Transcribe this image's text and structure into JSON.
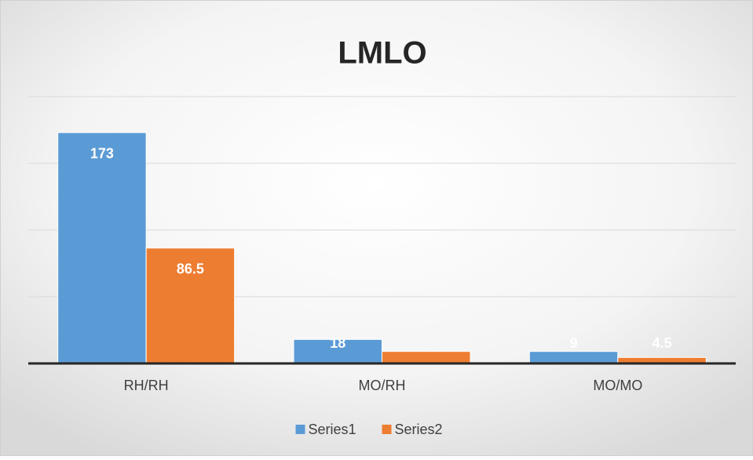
{
  "chart_data": {
    "type": "bar",
    "title": "LMLO",
    "categories": [
      "RH/RH",
      "MO/RH",
      "MO/MO"
    ],
    "series": [
      {
        "name": "Series1",
        "color": "#5b9bd5",
        "values": [
          173,
          18,
          9
        ],
        "value_labels": [
          "173",
          "18",
          "9"
        ]
      },
      {
        "name": "Series2",
        "color": "#ed7d31",
        "values": [
          86.5,
          9,
          4.5
        ],
        "value_labels": [
          "86.5",
          null,
          "4.5"
        ]
      }
    ],
    "ylim": [
      0,
      200
    ],
    "yticks": [
      0,
      50,
      100,
      150,
      200
    ],
    "grid": true,
    "legend": "bottom"
  }
}
